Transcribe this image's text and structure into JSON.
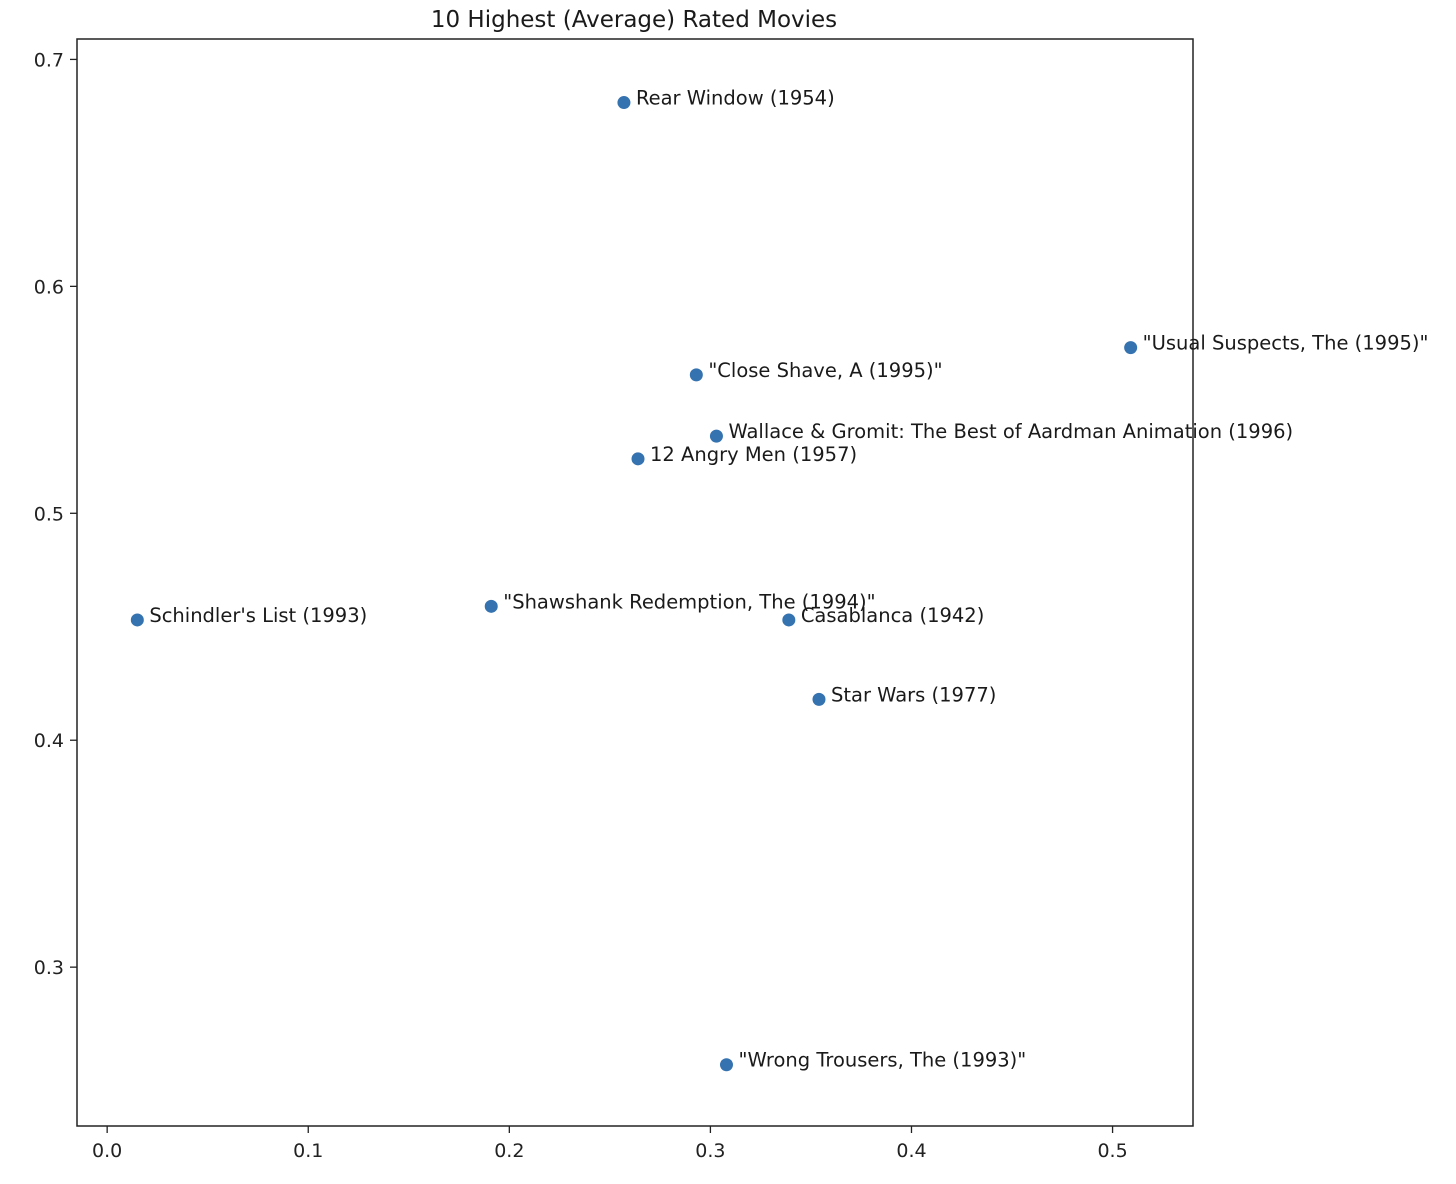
{
  "chart_data": {
    "type": "scatter",
    "title": "10 Highest (Average) Rated Movies",
    "xlabel": "",
    "ylabel": "",
    "xlim": [
      -0.015,
      0.54
    ],
    "ylim": [
      0.23,
      0.709
    ],
    "xticks": [
      0.0,
      0.1,
      0.2,
      0.3,
      0.4,
      0.5
    ],
    "xtick_labels": [
      "0.0",
      "0.1",
      "0.2",
      "0.3",
      "0.4",
      "0.5"
    ],
    "yticks": [
      0.3,
      0.4,
      0.5,
      0.6,
      0.7
    ],
    "ytick_labels": [
      "0.3",
      "0.4",
      "0.5",
      "0.6",
      "0.7"
    ],
    "grid": false,
    "legend": false,
    "marker_color": "#3572b0",
    "points": [
      {
        "x": 0.257,
        "y": 0.681,
        "label": "Rear Window (1954)"
      },
      {
        "x": 0.509,
        "y": 0.573,
        "label": "\"Usual Suspects, The (1995)\""
      },
      {
        "x": 0.293,
        "y": 0.561,
        "label": "\"Close Shave, A (1995)\""
      },
      {
        "x": 0.303,
        "y": 0.534,
        "label": "Wallace & Gromit: The Best of Aardman Animation (1996)"
      },
      {
        "x": 0.264,
        "y": 0.524,
        "label": "12 Angry Men (1957)"
      },
      {
        "x": 0.015,
        "y": 0.453,
        "label": "Schindler's List (1993)"
      },
      {
        "x": 0.191,
        "y": 0.459,
        "label": "\"Shawshank Redemption, The (1994)\""
      },
      {
        "x": 0.339,
        "y": 0.453,
        "label": "Casablanca (1942)"
      },
      {
        "x": 0.354,
        "y": 0.418,
        "label": "Star Wars (1977)"
      },
      {
        "x": 0.308,
        "y": 0.257,
        "label": "\"Wrong Trousers, The (1993)\""
      }
    ]
  }
}
